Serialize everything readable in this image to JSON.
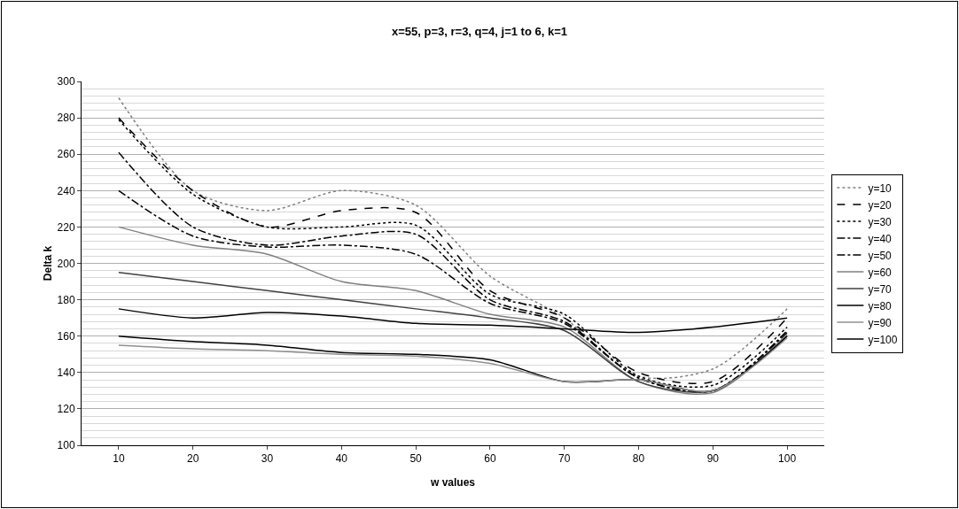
{
  "chart_data": {
    "type": "line",
    "title": "x=55, p=3, r=3, q=4, j=1 to 6, k=1",
    "xlabel": "w values",
    "ylabel": "Delta k",
    "categories": [
      "10",
      "20",
      "30",
      "40",
      "50",
      "60",
      "70",
      "80",
      "90",
      "100"
    ],
    "ylim": [
      100,
      300
    ],
    "yticks": [
      100,
      120,
      140,
      160,
      180,
      200,
      220,
      240,
      260,
      280,
      300
    ],
    "grid": "y",
    "legend": "right",
    "marker": "none",
    "series": [
      {
        "name": "y=10",
        "color": "#808080",
        "line_style": "dotted",
        "values": [
          291,
          240,
          229,
          240,
          232,
          193,
          170,
          138,
          142,
          175
        ]
      },
      {
        "name": "y=20",
        "color": "#000000",
        "line_style": "dashed",
        "values": [
          280,
          240,
          220,
          229,
          228,
          185,
          170,
          140,
          135,
          170
        ]
      },
      {
        "name": "y=30",
        "color": "#000000",
        "line_style": "dotted",
        "values": [
          279,
          238,
          220,
          220,
          221,
          183,
          172,
          138,
          133,
          165
        ]
      },
      {
        "name": "y=40",
        "color": "#000000",
        "line_style": "dashdot",
        "values": [
          261,
          220,
          210,
          215,
          216,
          180,
          168,
          137,
          130,
          163
        ]
      },
      {
        "name": "y=50",
        "color": "#000000",
        "line_style": "dashdot",
        "values": [
          240,
          215,
          209,
          210,
          205,
          178,
          167,
          137,
          130,
          162
        ]
      },
      {
        "name": "y=60",
        "color": "#808080",
        "line_style": "solid",
        "values": [
          220,
          210,
          205,
          190,
          185,
          172,
          165,
          135,
          129,
          161
        ]
      },
      {
        "name": "y=70",
        "color": "#404040",
        "line_style": "solid",
        "values": [
          195,
          190,
          185,
          180,
          175,
          170,
          163,
          135,
          130,
          160
        ]
      },
      {
        "name": "y=80",
        "color": "#000000",
        "line_style": "solid",
        "values": [
          160,
          157,
          155,
          151,
          150,
          147,
          135,
          136,
          130,
          160
        ]
      },
      {
        "name": "y=90",
        "color": "#909090",
        "line_style": "solid",
        "values": [
          155,
          153,
          152,
          150,
          149,
          145,
          135,
          136,
          130,
          159
        ]
      },
      {
        "name": "y=100",
        "color": "#000000",
        "line_style": "solid",
        "values": [
          175,
          170,
          173,
          171,
          167,
          166,
          164,
          162,
          165,
          170
        ]
      }
    ]
  }
}
